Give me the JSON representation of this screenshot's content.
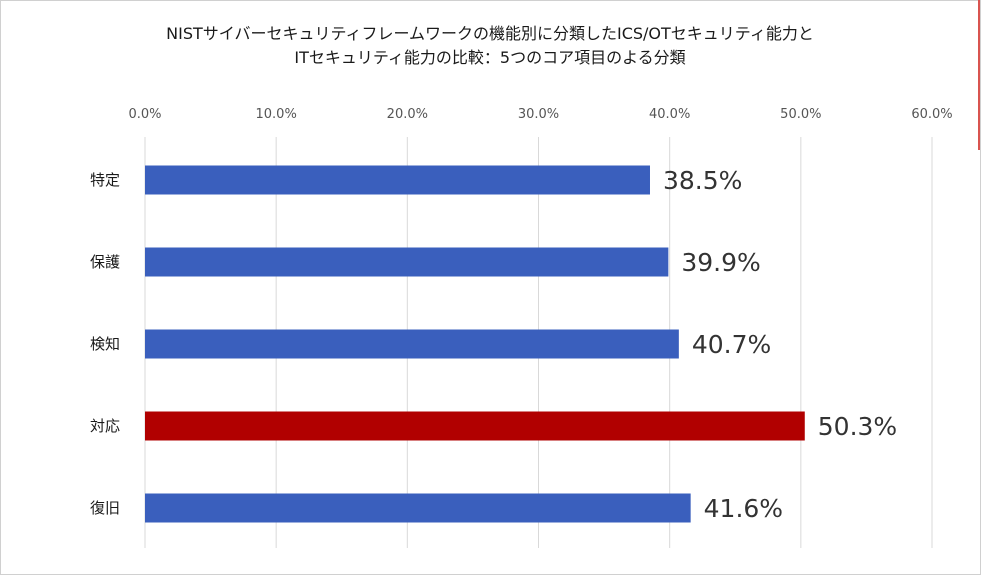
{
  "chart_data": {
    "type": "bar",
    "orientation": "horizontal",
    "title": "NISTサイバーセキュリティフレームワークの機能別に分類したICS/OTセキュリティ能力とITセキュリティ能力の比較：5つのコア項目のよる分類",
    "title_lines": [
      "NISTサイバーセキュリティフレームワークの機能別に分類したICS/OTセキュリティ能力と",
      "ITセキュリティ能力の比較：5つのコア項目のよる分類"
    ],
    "categories": [
      "特定",
      "保護",
      "検知",
      "対応",
      "復旧"
    ],
    "values": [
      38.5,
      39.9,
      40.7,
      50.3,
      41.6
    ],
    "data_labels": [
      "38.5%",
      "39.9%",
      "40.7%",
      "50.3%",
      "41.6%"
    ],
    "x_ticks": [
      0,
      10,
      20,
      30,
      40,
      50,
      60
    ],
    "x_tick_labels": [
      "0.0%",
      "10.0%",
      "20.0%",
      "30.0%",
      "40.0%",
      "50.0%",
      "60.0%"
    ],
    "xlim": [
      0,
      60
    ],
    "axis_position": "top",
    "grid": true,
    "legend": "none",
    "colors": {
      "default_bar": "#3a5fbd",
      "highlight_bar": "#b10000",
      "grid": "#d9d9d9"
    },
    "highlight_index": 3
  }
}
